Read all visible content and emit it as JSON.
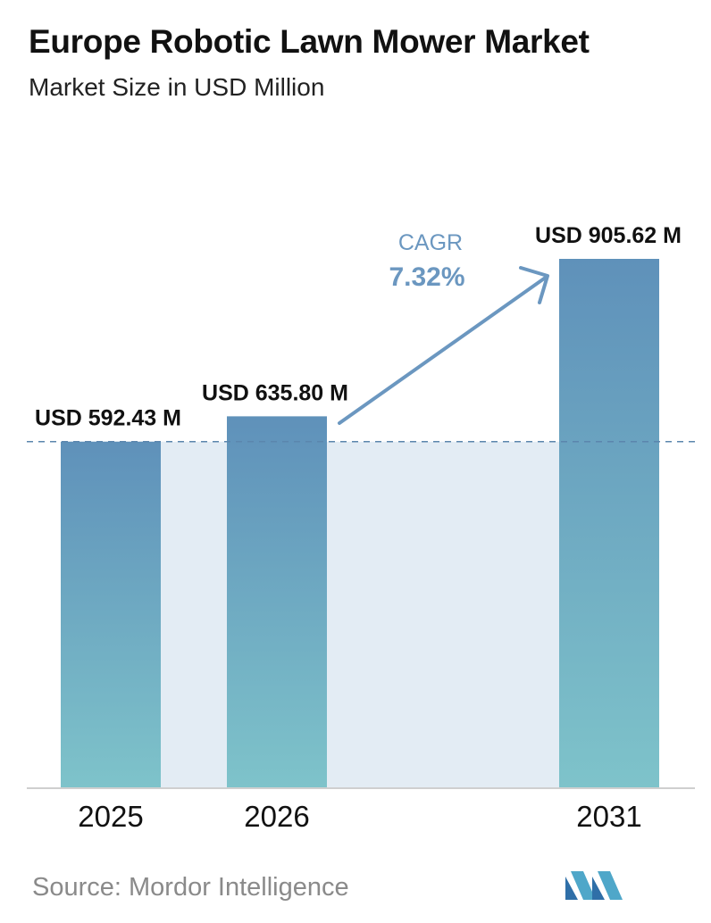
{
  "title": "Europe Robotic Lawn Mower Market",
  "subtitle": "Market Size in USD Million",
  "source": "Source:  Mordor Intelligence",
  "cagr": {
    "label": "CAGR",
    "value": "7.32%"
  },
  "colors": {
    "bar_top": "#5f91ba",
    "bar_bottom": "#7ec3ca",
    "band": "#e3ecf4",
    "arrow": "#6b97c0",
    "dashed_line": "#5b86ad",
    "axis": "#cfcfcf"
  },
  "chart_data": {
    "type": "bar",
    "categories": [
      "2025",
      "2026",
      "2031"
    ],
    "values": [
      592.43,
      635.8,
      905.62
    ],
    "value_labels": [
      "USD 592.43 M",
      "USD 635.80 M",
      "USD 905.62 M"
    ],
    "title": "Europe Robotic Lawn Mower Market",
    "subtitle": "Market Size in USD Million",
    "ylim": [
      0,
      905.62
    ],
    "grid": false,
    "legend": "none"
  }
}
